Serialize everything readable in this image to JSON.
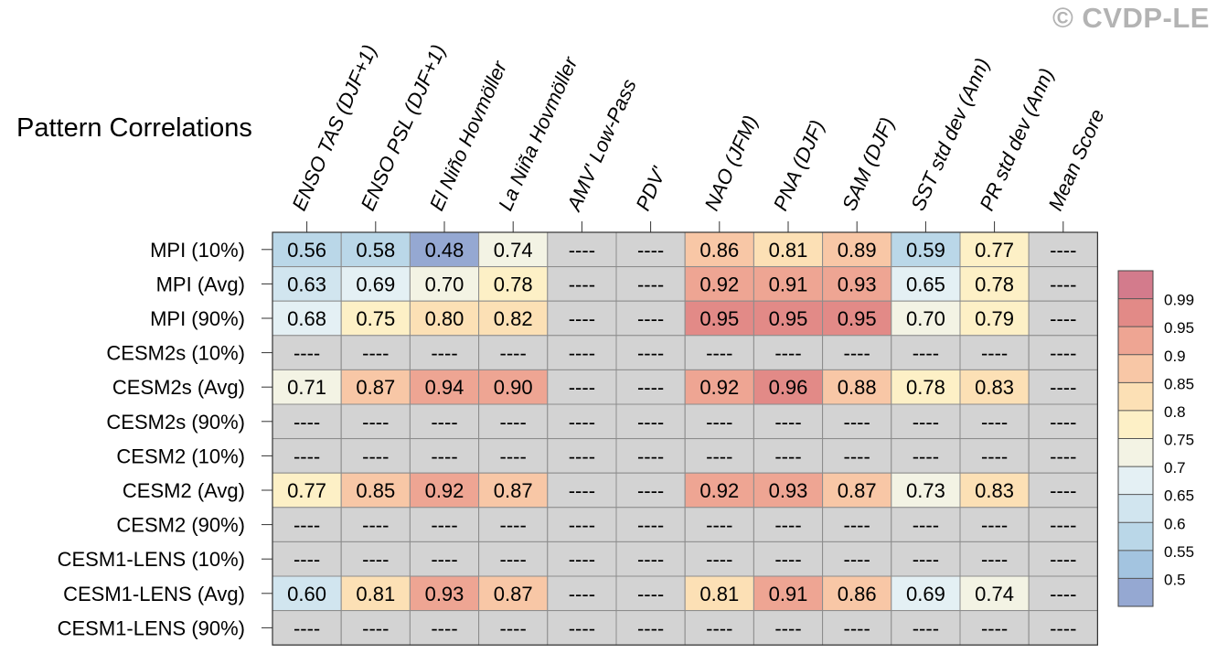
{
  "title": "Pattern Correlations",
  "watermark": "© CVDP-LE",
  "chart_data": {
    "type": "heatmap",
    "title": "Pattern Correlations",
    "columns": [
      "ENSO TAS (DJF+1)",
      "ENSO PSL (DJF+1)",
      "El Niño Hovmöller",
      "La Niña Hovmöller",
      "AMV' Low-Pass",
      "PDV'",
      "NAO (JFM)",
      "PNA (DJF)",
      "SAM (DJF)",
      "SST std dev (Ann)",
      "PR std dev (Ann)",
      "Mean Score"
    ],
    "rows": [
      "MPI (10%)",
      "MPI (Avg)",
      "MPI (90%)",
      "CESM2s (10%)",
      "CESM2s (Avg)",
      "CESM2s (90%)",
      "CESM2 (10%)",
      "CESM2 (Avg)",
      "CESM2 (90%)",
      "CESM1-LENS (10%)",
      "CESM1-LENS (Avg)",
      "CESM1-LENS (90%)"
    ],
    "values": [
      [
        0.56,
        0.58,
        0.48,
        0.74,
        null,
        null,
        0.86,
        0.81,
        0.89,
        0.59,
        0.77,
        null
      ],
      [
        0.63,
        0.69,
        0.7,
        0.78,
        null,
        null,
        0.92,
        0.91,
        0.93,
        0.65,
        0.78,
        null
      ],
      [
        0.68,
        0.75,
        0.8,
        0.82,
        null,
        null,
        0.95,
        0.95,
        0.95,
        0.7,
        0.79,
        null
      ],
      [
        null,
        null,
        null,
        null,
        null,
        null,
        null,
        null,
        null,
        null,
        null,
        null
      ],
      [
        0.71,
        0.87,
        0.94,
        0.9,
        null,
        null,
        0.92,
        0.96,
        0.88,
        0.78,
        0.83,
        null
      ],
      [
        null,
        null,
        null,
        null,
        null,
        null,
        null,
        null,
        null,
        null,
        null,
        null
      ],
      [
        null,
        null,
        null,
        null,
        null,
        null,
        null,
        null,
        null,
        null,
        null,
        null
      ],
      [
        0.77,
        0.85,
        0.92,
        0.87,
        null,
        null,
        0.92,
        0.93,
        0.87,
        0.73,
        0.83,
        null
      ],
      [
        null,
        null,
        null,
        null,
        null,
        null,
        null,
        null,
        null,
        null,
        null,
        null
      ],
      [
        null,
        null,
        null,
        null,
        null,
        null,
        null,
        null,
        null,
        null,
        null,
        null
      ],
      [
        0.6,
        0.81,
        0.93,
        0.87,
        null,
        null,
        0.81,
        0.91,
        0.86,
        0.69,
        0.74,
        null
      ],
      [
        null,
        null,
        null,
        null,
        null,
        null,
        null,
        null,
        null,
        null,
        null,
        null
      ]
    ],
    "missing_label": "----",
    "missing_color": "#d3d3d3",
    "colorbar": {
      "ticks": [
        0.5,
        0.55,
        0.6,
        0.65,
        0.7,
        0.75,
        0.8,
        0.85,
        0.9,
        0.95,
        0.99
      ],
      "tick_labels": [
        "0.5",
        "0.55",
        "0.6",
        "0.65",
        "0.7",
        "0.75",
        "0.8",
        "0.85",
        "0.9",
        "0.95",
        "0.99"
      ],
      "bin_colors": [
        "#95a8d2",
        "#a3c4e0",
        "#bad7e8",
        "#d1e5ef",
        "#e4f0f4",
        "#f3f3e4",
        "#fdf0c6",
        "#fce0b5",
        "#f8c7a6",
        "#eea593",
        "#e28a87",
        "#d37b8c"
      ]
    }
  }
}
